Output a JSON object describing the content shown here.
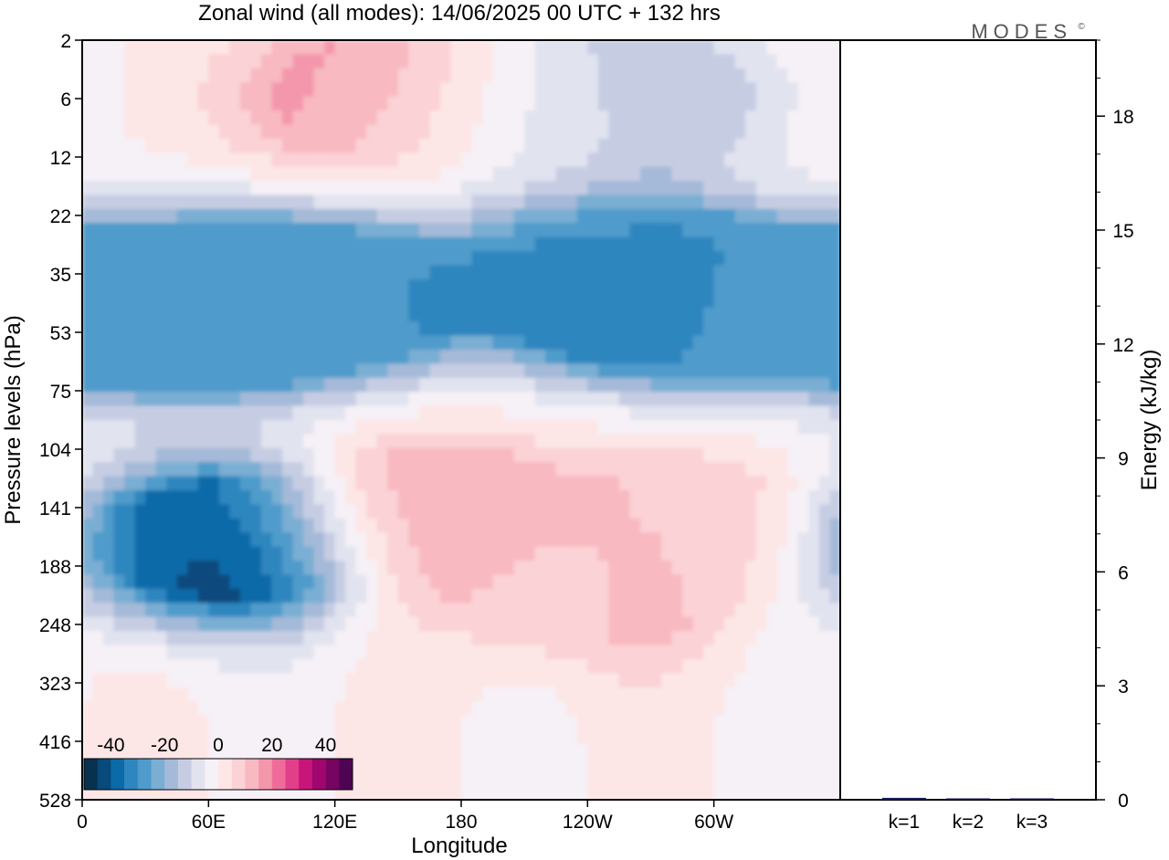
{
  "chart_data": [
    {
      "type": "heatmap",
      "title": "Zonal wind (all modes):  14/06/2025  00 UTC  + 132 hrs",
      "xlabel": "Longitude",
      "ylabel": "Pressure levels (hPa)",
      "x_ticks": [
        "0",
        "60E",
        "120E",
        "180",
        "120W",
        "60W"
      ],
      "x_tick_degrees": [
        0,
        60,
        120,
        180,
        240,
        300
      ],
      "xlim_degrees": [
        0,
        360
      ],
      "y_ticks": [
        "2",
        "6",
        "12",
        "22",
        "35",
        "53",
        "75",
        "104",
        "141",
        "188",
        "248",
        "323",
        "416",
        "528"
      ],
      "colorbar": {
        "ticks": [
          "-40",
          "-20",
          "0",
          "20",
          "40"
        ],
        "tick_values": [
          -40,
          -20,
          0,
          20,
          40
        ],
        "range": [
          -50,
          50
        ],
        "step": 5,
        "colors": [
          "#08304f",
          "#094a7c",
          "#0b6aa8",
          "#2e86bf",
          "#4f9bcb",
          "#7aaed3",
          "#a4bad8",
          "#c6cde3",
          "#e1e3ef",
          "#f6f1f6",
          "#fde6e6",
          "#fbd2d5",
          "#f8b9c1",
          "#f497ac",
          "#ef6c9a",
          "#e23f8b",
          "#c8157a",
          "#a0066d",
          "#760460",
          "#4e0452"
        ]
      },
      "field_features": [
        {
          "lon": 140,
          "level": 1,
          "value": 18
        },
        {
          "lon": 200,
          "level": 1.4,
          "value": -6
        },
        {
          "lon": 260,
          "level": 1,
          "value": -14
        },
        {
          "lon": 20,
          "level": 4.6,
          "value": -24
        },
        {
          "lon": 60,
          "level": 4.6,
          "value": -28
        },
        {
          "lon": 120,
          "level": 4.4,
          "value": -30
        },
        {
          "lon": 250,
          "level": 4.2,
          "value": -34
        },
        {
          "lon": 300,
          "level": 4.5,
          "value": -29
        },
        {
          "lon": 65,
          "level": 8.6,
          "value": -44
        },
        {
          "lon": 160,
          "level": 8.1,
          "value": 17
        },
        {
          "lon": 240,
          "level": 9.4,
          "value": 9
        },
        {
          "lon": 290,
          "level": 8.3,
          "value": 9
        }
      ]
    },
    {
      "type": "bar",
      "ylabel": "Energy (kJ/kg)",
      "categories": [
        "k=1",
        "k=2",
        "k=3"
      ],
      "values": [
        0.05,
        0.03,
        0.0
      ],
      "ylim": [
        0,
        20
      ],
      "y_ticks": [
        "0",
        "3",
        "6",
        "9",
        "12",
        "15",
        "18"
      ],
      "y_tick_values": [
        0,
        3,
        6,
        9,
        12,
        15,
        18
      ]
    }
  ],
  "logo_text": "MODES",
  "logo_mark": "©"
}
